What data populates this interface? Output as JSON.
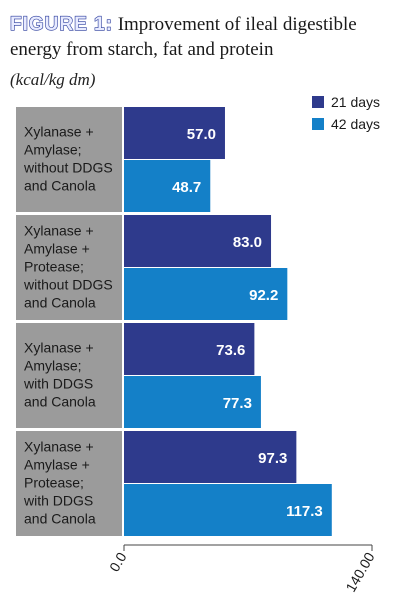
{
  "figure_label": "FIGURE 1:",
  "title": "Improvement of ileal digestible energy from starch, fat and protein",
  "subtitle": "(kcal/kg dm)",
  "colors": {
    "series_21": "#2e3a8c",
    "series_42": "#1480c8",
    "category_bg": "#9b9b9b"
  },
  "chart_data": {
    "type": "bar",
    "orientation": "horizontal",
    "title": "Improvement of ileal digestible energy from starch, fat and protein",
    "unit": "(kcal/kg dm)",
    "categories": [
      [
        "Xylanase +",
        "Amylase;",
        "without DDGS",
        "and Canola"
      ],
      [
        "Xylanase +",
        "Amylase +",
        "Protease;",
        "without DDGS",
        "and Canola"
      ],
      [
        "Xylanase +",
        "Amylase;",
        "with DDGS",
        "and Canola"
      ],
      [
        "Xylanase +",
        "Amylase +",
        "Protease;",
        "with DDGS",
        "and Canola"
      ]
    ],
    "series": [
      {
        "name": "21 days",
        "values": [
          57.0,
          83.0,
          73.6,
          97.3
        ],
        "labels": [
          "57.0",
          "83.0",
          "73.6",
          "97.3"
        ]
      },
      {
        "name": "42 days",
        "values": [
          48.7,
          92.2,
          77.3,
          117.3
        ],
        "labels": [
          "48.7",
          "92.2",
          "77.3",
          "117.3"
        ]
      }
    ],
    "xlim": [
      0,
      140
    ],
    "tick_labels": [
      "0.0",
      "140.00"
    ],
    "legend": "top-right",
    "grid": false
  }
}
